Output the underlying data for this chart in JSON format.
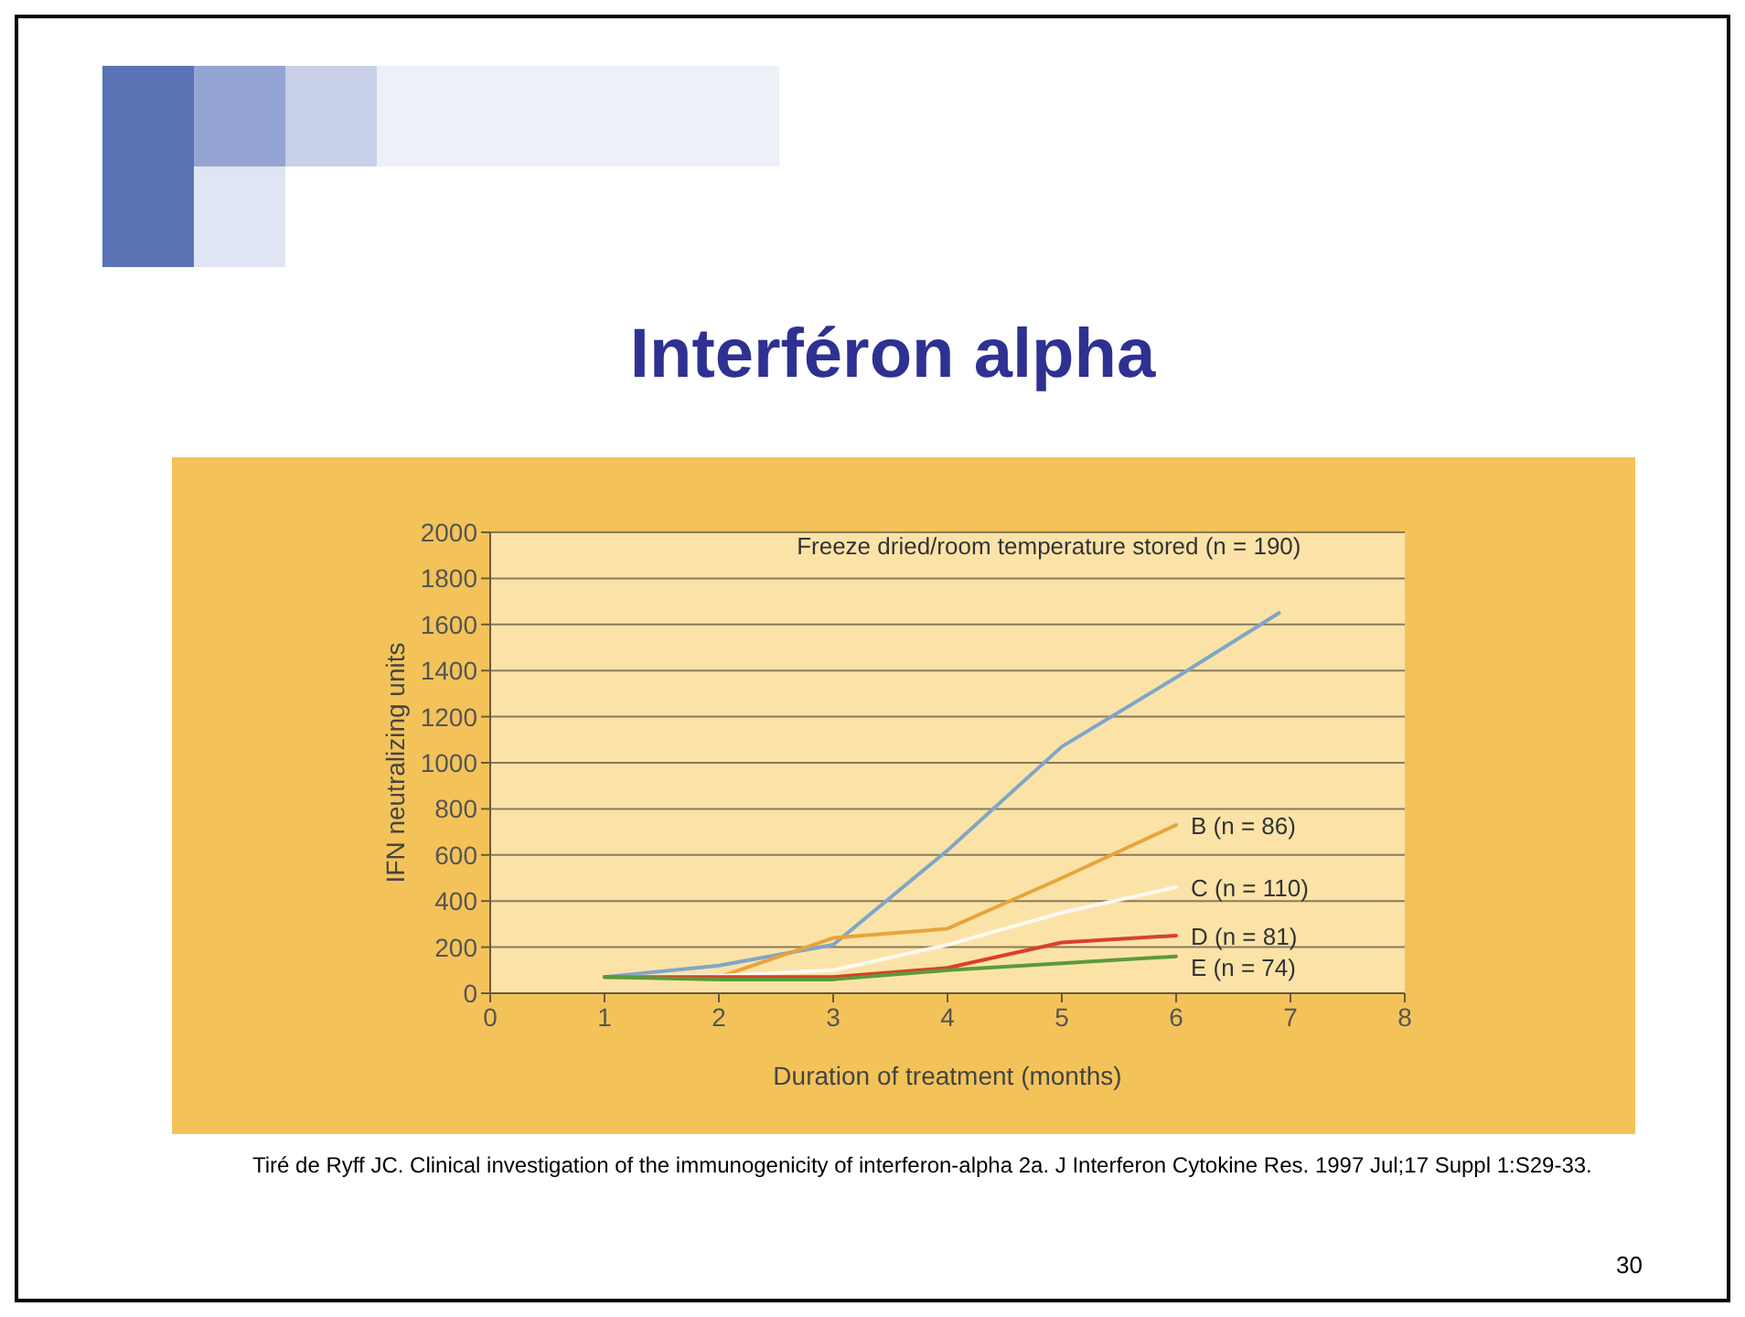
{
  "chart_data": {
    "type": "line",
    "title": "Interféron alpha",
    "xlabel": "Duration of treatment (months)",
    "ylabel": "IFN neutralizing units",
    "xlim": [
      0,
      8
    ],
    "xticks": [
      0,
      1,
      2,
      3,
      4,
      5,
      6,
      7,
      8
    ],
    "ylim": [
      0,
      2000
    ],
    "yticks": [
      0,
      200,
      400,
      600,
      800,
      1000,
      1200,
      1400,
      1600,
      1800,
      2000
    ],
    "grid": "y",
    "marker": "none",
    "line_style": "solid",
    "series": [
      {
        "name": "Freeze dried/room temperature stored (n = 190)",
        "color": "#7fa6c8",
        "x": [
          1,
          2,
          3,
          4,
          5,
          6,
          6.9
        ],
        "values": [
          70,
          120,
          210,
          620,
          1070,
          1370,
          1650
        ]
      },
      {
        "name": "B (n = 86)",
        "color": "#e8a43a",
        "x": [
          1,
          2,
          3,
          4,
          5,
          6
        ],
        "values": [
          70,
          70,
          240,
          280,
          500,
          730
        ]
      },
      {
        "name": "C (n = 110)",
        "color": "#fdfaf0",
        "x": [
          1,
          2,
          3,
          4,
          5,
          6
        ],
        "values": [
          70,
          75,
          100,
          210,
          350,
          460
        ]
      },
      {
        "name": "D (n = 81)",
        "color": "#d8402a",
        "x": [
          1,
          2,
          3,
          4,
          5,
          6
        ],
        "values": [
          70,
          70,
          70,
          110,
          220,
          250
        ]
      },
      {
        "name": "E (n = 74)",
        "color": "#5c9a3a",
        "x": [
          1,
          2,
          3,
          4,
          5,
          6
        ],
        "values": [
          70,
          60,
          60,
          100,
          130,
          160
        ]
      }
    ],
    "annotations": [
      "Tiré de Ryff JC. Clinical investigation of the immunogenicity of interferon-alpha 2a. J Interferon Cytokine Res. 1997 Jul;17 Suppl 1:S29-33.",
      "30"
    ]
  }
}
